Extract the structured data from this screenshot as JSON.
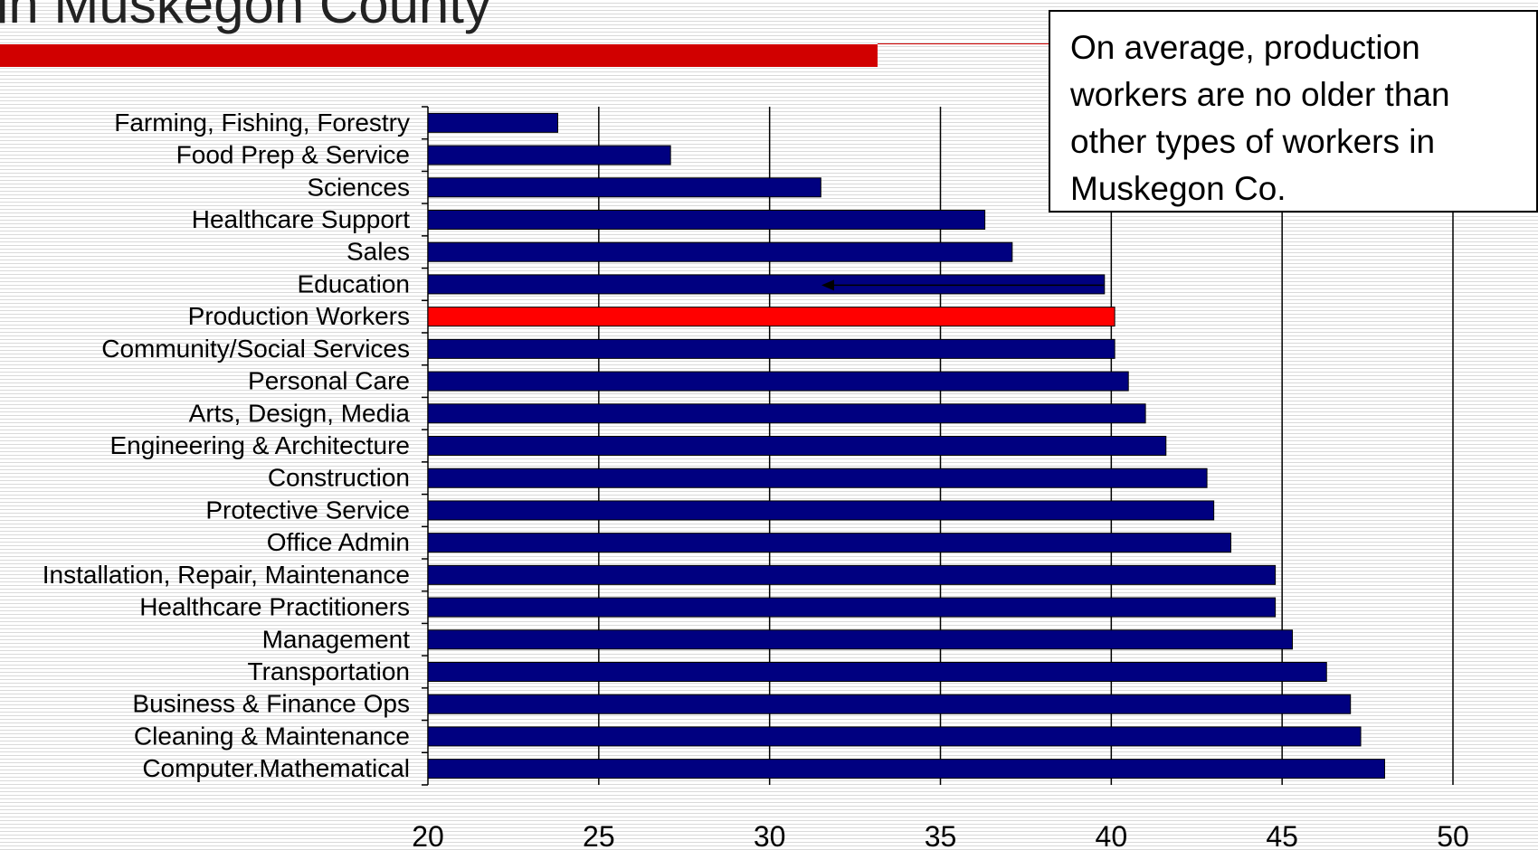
{
  "title": "in Muskegon County",
  "callout": "On average, production workers are no older than other types of workers in Muskegon Co.",
  "colors": {
    "bar": "#000080",
    "highlight": "#ff0000",
    "accent": "#d10000"
  },
  "chart_data": {
    "type": "bar",
    "orientation": "horizontal",
    "categories": [
      "Farming, Fishing, Forestry",
      "Food Prep & Service",
      "Sciences",
      "Healthcare Support",
      "Sales",
      "Education",
      "Production Workers",
      "Community/Social Services",
      "Personal Care",
      "Arts, Design, Media",
      "Engineering & Architecture",
      "Construction",
      "Protective Service",
      "Office Admin",
      "Installation, Repair, Maintenance",
      "Healthcare Practitioners",
      "Management",
      "Transportation",
      "Business & Finance Ops",
      "Cleaning & Maintenance",
      "Computer.Mathematical"
    ],
    "values": [
      23.8,
      27.1,
      31.5,
      36.3,
      37.1,
      39.8,
      40.1,
      40.1,
      40.5,
      41.0,
      41.6,
      42.8,
      43.0,
      43.5,
      44.8,
      44.8,
      45.3,
      46.3,
      47.0,
      47.3,
      48.0
    ],
    "highlight": "Production Workers",
    "xlim": [
      20,
      50
    ],
    "xticks": [
      20,
      25,
      30,
      35,
      40,
      45,
      50
    ],
    "grid": true,
    "xlabel": "",
    "ylabel": ""
  }
}
